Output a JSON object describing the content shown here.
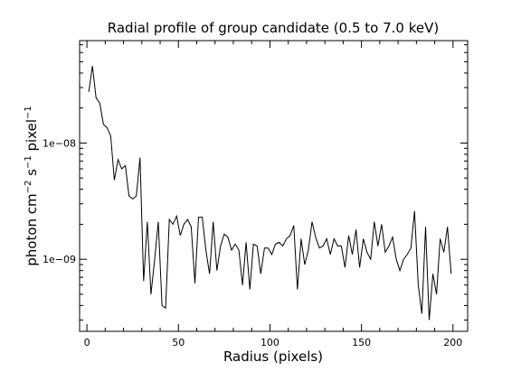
{
  "chart_data": {
    "type": "line",
    "title": "Radial profile of group candidate (0.5 to 7.0 keV)",
    "xlabel": "Radius (pixels)",
    "ylabel_parts": [
      "photon cm",
      "−2",
      " s",
      "−1",
      " pixel",
      "−1"
    ],
    "xlim": [
      -4,
      208
    ],
    "ylim": [
      2.4e-10,
      7.6e-08
    ],
    "yscale": "log",
    "grid": false,
    "x_ticks": [
      {
        "value": 0,
        "label": "0"
      },
      {
        "value": 50,
        "label": "50"
      },
      {
        "value": 100,
        "label": "100"
      },
      {
        "value": 150,
        "label": "150"
      },
      {
        "value": 200,
        "label": "200"
      }
    ],
    "y_ticks": [
      {
        "value": 1e-09,
        "label": "1e−09"
      },
      {
        "value": 1e-08,
        "label": "1e−08"
      }
    ],
    "series": [
      {
        "color": "#000000",
        "x": [
          1,
          3,
          5,
          7,
          9,
          11,
          13,
          15,
          17,
          19,
          21,
          23,
          25,
          27,
          29,
          31,
          33,
          35,
          37,
          39,
          41,
          43,
          45,
          47,
          49,
          51,
          53,
          55,
          57,
          59,
          61,
          63,
          65,
          67,
          69,
          71,
          73,
          75,
          77,
          79,
          81,
          83,
          85,
          87,
          89,
          91,
          93,
          95,
          97,
          99,
          101,
          103,
          105,
          107,
          109,
          111,
          113,
          115,
          117,
          119,
          121,
          123,
          125,
          127,
          129,
          131,
          133,
          135,
          137,
          139,
          141,
          143,
          145,
          147,
          149,
          151,
          153,
          155,
          157,
          159,
          161,
          163,
          165,
          167,
          169,
          171,
          173,
          175,
          177,
          179,
          181,
          183,
          185,
          187,
          189,
          191,
          193,
          195,
          197,
          199
        ],
        "y": [
          2.75e-08,
          4.6e-08,
          2.45e-08,
          2.2e-08,
          1.45e-08,
          1.35e-08,
          1.15e-08,
          4.8e-09,
          7.2e-09,
          6e-09,
          6.4e-09,
          3.5e-09,
          3.3e-09,
          3.5e-09,
          7.5e-09,
          6.5e-10,
          2.1e-09,
          5e-10,
          1e-09,
          2.1e-09,
          4e-10,
          3.8e-10,
          2.2e-09,
          2e-09,
          2.35e-09,
          1.6e-09,
          2e-09,
          2.2e-09,
          1.9e-09,
          6.2e-10,
          2.3e-09,
          2.3e-09,
          1.2e-09,
          7.5e-10,
          2.1e-09,
          8e-10,
          1.3e-09,
          1.65e-09,
          1.55e-09,
          1.2e-09,
          1.35e-09,
          1.2e-09,
          6e-10,
          1.4e-09,
          5.5e-10,
          1.35e-09,
          1.3e-09,
          7.5e-10,
          1.25e-09,
          1.25e-09,
          1.1e-09,
          1.35e-09,
          1.4e-09,
          1.3e-09,
          1.5e-09,
          1.6e-09,
          1.95e-09,
          5.5e-10,
          1.5e-09,
          9e-10,
          1.2e-09,
          2.1e-09,
          1.55e-09,
          1.25e-09,
          1.3e-09,
          1.5e-09,
          1.1e-09,
          1.5e-09,
          1.3e-09,
          1.3e-09,
          8.5e-10,
          1.6e-09,
          1.1e-09,
          1.8e-09,
          8.5e-10,
          1.5e-09,
          1.15e-09,
          1e-09,
          2.1e-09,
          1.3e-09,
          2e-09,
          1.15e-09,
          1.3e-09,
          1.55e-09,
          1e-09,
          8e-10,
          1e-09,
          1.1e-09,
          1.25e-09,
          2.6e-09,
          6e-10,
          3.4e-10,
          1.9e-09,
          3e-10,
          7.5e-10,
          5e-10,
          1.5e-09,
          1.15e-09,
          1.9e-09,
          7.5e-10
        ]
      }
    ]
  }
}
